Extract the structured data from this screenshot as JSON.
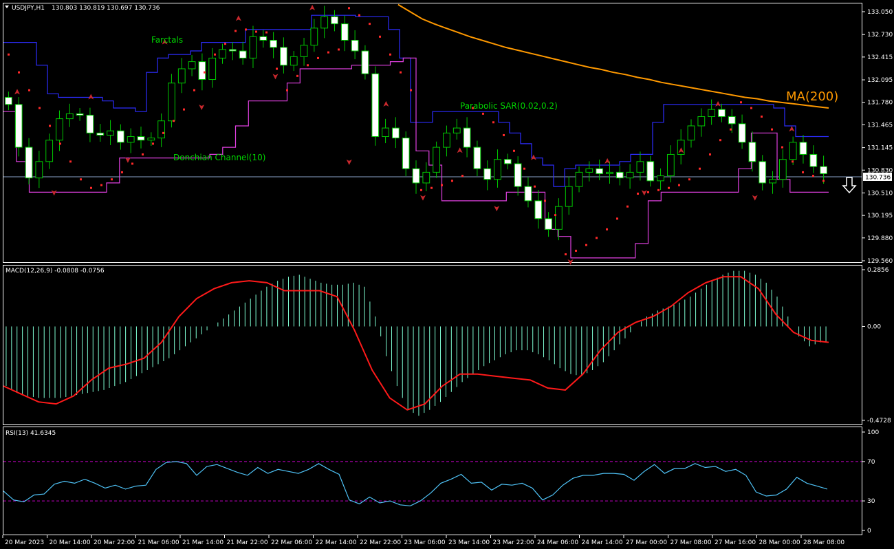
{
  "header": {
    "symbol": "USDJPY,H1",
    "ohlc": "130.803 130.819 130.697 130.736"
  },
  "colors": {
    "background": "#000000",
    "frame": "#ffffff",
    "candle": "#00c800",
    "candle_body": "#ffffff",
    "ma": "#ff9900",
    "donchian_upper": "#2d2dff",
    "donchian_lower": "#e040e0",
    "sar": "#ff2a2a",
    "fractal": "#c8282d",
    "macd_hist": "#7fffd4",
    "macd_signal": "#ff1a1a",
    "rsi": "#4fc3f7",
    "rsi_levels": "#c800c8",
    "label_green": "#00d600",
    "label_orange": "#ff9900"
  },
  "price_panel": {
    "ticks": [
      "133.050",
      "132.730",
      "132.415",
      "132.095",
      "131.780",
      "131.465",
      "131.145",
      "130.830",
      "130.510",
      "130.195",
      "129.880",
      "129.560"
    ],
    "current_price": "130.736",
    "labels": {
      "fractals": "Farctals",
      "sar": "Parabolic SAR(0.02,0.2)",
      "donchian": "Donchian Channel(10)",
      "ma": "MA(200)"
    },
    "icons": [
      "down-arrow-icon",
      "fractal-marker-icon"
    ]
  },
  "macd_panel": {
    "title": "MACD(12,26,9) -0.0808 -0.0756",
    "ticks": [
      "0.2856",
      "0.00",
      "-0.4728"
    ]
  },
  "rsi_panel": {
    "title": "RSI(13) 41.6345",
    "ticks": [
      "100",
      "70",
      "30",
      "0"
    ]
  },
  "x_axis": {
    "labels": [
      "20 Mar 2023",
      "20 Mar 14:00",
      "20 Mar 22:00",
      "21 Mar 06:00",
      "21 Mar 14:00",
      "21 Mar 22:00",
      "22 Mar 06:00",
      "22 Mar 14:00",
      "22 Mar 22:00",
      "23 Mar 06:00",
      "23 Mar 14:00",
      "23 Mar 22:00",
      "24 Mar 06:00",
      "24 Mar 14:00",
      "27 Mar 00:00",
      "27 Mar 08:00",
      "27 Mar 16:00",
      "28 Mar 00:00",
      "28 Mar 08:00"
    ]
  },
  "chart_data": [
    {
      "type": "candlestick",
      "title": "USDJPY,H1",
      "ylim": [
        129.56,
        133.15
      ],
      "current_price": 130.736,
      "series": [
        {
          "name": "Close",
          "values": [
            131.75,
            131.15,
            130.72,
            130.95,
            131.25,
            131.55,
            131.62,
            131.6,
            131.35,
            131.32,
            131.38,
            131.22,
            131.3,
            131.25,
            131.28,
            131.52,
            132.05,
            132.25,
            132.35,
            132.1,
            132.4,
            132.52,
            132.5,
            132.4,
            132.7,
            132.65,
            132.55,
            132.3,
            132.42,
            132.58,
            132.82,
            132.98,
            132.88,
            132.65,
            132.5,
            132.18,
            131.3,
            131.42,
            131.28,
            130.85,
            130.65,
            130.8,
            131.15,
            131.35,
            131.42,
            131.15,
            130.85,
            130.7,
            130.98,
            130.92,
            130.6,
            130.4,
            130.15,
            130.0,
            130.32,
            130.6,
            130.8,
            130.85,
            130.78,
            130.8,
            130.72,
            130.8,
            130.95,
            130.68,
            130.75,
            131.05,
            131.25,
            131.45,
            131.58,
            131.68,
            131.58,
            131.48,
            131.22,
            130.95,
            130.65,
            130.7,
            130.98,
            131.22,
            131.05,
            130.88,
            130.78
          ]
        },
        {
          "name": "MA(200)",
          "values": [
            null,
            null,
            null,
            null,
            null,
            null,
            null,
            null,
            null,
            null,
            null,
            null,
            null,
            null,
            null,
            null,
            null,
            null,
            null,
            null,
            null,
            null,
            null,
            null,
            null,
            null,
            null,
            null,
            null,
            null,
            null,
            null,
            null,
            133.15,
            133.05,
            132.95,
            132.88,
            132.82,
            132.76,
            132.7,
            132.65,
            132.6,
            132.55,
            132.51,
            132.47,
            132.43,
            132.39,
            132.35,
            132.31,
            132.27,
            132.24,
            132.2,
            132.17,
            132.13,
            132.1,
            132.06,
            132.03,
            132.0,
            131.97,
            131.94,
            131.91,
            131.88,
            131.85,
            131.83,
            131.8,
            131.78,
            131.76,
            131.74,
            131.72,
            131.7
          ]
        },
        {
          "name": "Donchian Channel(10) upper",
          "values": [
            132.62,
            132.62,
            132.62,
            132.3,
            131.9,
            131.85,
            131.85,
            131.85,
            131.85,
            131.8,
            131.7,
            131.7,
            131.65,
            132.2,
            132.4,
            132.45,
            132.45,
            132.5,
            132.62,
            132.62,
            132.62,
            132.62,
            132.8,
            132.8,
            132.8,
            132.8,
            132.8,
            132.8,
            133.0,
            133.0,
            133.0,
            133.0,
            132.98,
            132.98,
            132.98,
            132.8,
            132.4,
            131.5,
            131.5,
            131.65,
            131.65,
            131.65,
            131.65,
            131.65,
            131.65,
            131.5,
            131.35,
            131.2,
            131.0,
            130.9,
            130.6,
            130.85,
            130.9,
            130.9,
            130.9,
            130.9,
            130.95,
            131.05,
            131.05,
            131.5,
            131.75,
            131.75,
            131.75,
            131.75,
            131.75,
            131.75,
            131.75,
            131.75,
            131.75,
            131.75,
            131.7,
            131.45,
            131.3,
            131.3,
            131.3
          ]
        },
        {
          "name": "Donchian Channel(10) lower",
          "values": [
            131.65,
            130.95,
            130.52,
            130.52,
            130.52,
            130.52,
            130.52,
            130.52,
            130.65,
            131.0,
            131.0,
            131.0,
            131.0,
            131.0,
            131.0,
            131.0,
            131.05,
            131.15,
            131.45,
            131.8,
            131.8,
            131.8,
            132.05,
            132.25,
            132.25,
            132.25,
            132.25,
            132.3,
            132.3,
            132.3,
            132.35,
            132.4,
            131.1,
            130.9,
            130.4,
            130.4,
            130.4,
            130.4,
            130.4,
            130.52,
            130.52,
            130.52,
            130.0,
            129.9,
            129.6,
            129.6,
            129.6,
            129.6,
            129.6,
            129.8,
            130.4,
            130.52,
            130.52,
            130.52,
            130.52,
            130.52,
            130.52,
            130.85,
            131.35,
            131.35,
            130.7,
            130.52,
            130.52,
            130.52
          ]
        },
        {
          "name": "Parabolic SAR(0.02,0.2)",
          "values": [
            132.45,
            132.2,
            131.95,
            131.7,
            131.45,
            131.2,
            130.95,
            130.7,
            130.58,
            130.62,
            130.7,
            130.8,
            130.92,
            131.05,
            131.2,
            131.35,
            131.52,
            131.68,
            131.95,
            132.2,
            132.45,
            132.6,
            132.78,
            132.8,
            132.77,
            132.76,
            132.25,
            131.95,
            132.15,
            132.3,
            132.4,
            132.48,
            132.52,
            133.1,
            133.0,
            132.88,
            132.7,
            132.45,
            132.2,
            131.95,
            130.55,
            130.58,
            130.62,
            130.68,
            130.75,
            131.7,
            131.62,
            131.5,
            131.32,
            131.1,
            130.85,
            130.6,
            130.4,
            130.2,
            129.65,
            129.7,
            129.78,
            129.88,
            130.0,
            130.15,
            130.32,
            130.5,
            130.52,
            130.55,
            130.58,
            130.62,
            130.7,
            130.85,
            131.05,
            131.25,
            131.4,
            131.78,
            131.7,
            131.58,
            131.4,
            131.15,
            130.95,
            130.8,
            130.75,
            130.68
          ]
        },
        {
          "name": "Farctals",
          "values": [
            "131.92 up",
            "130.52 down",
            "131.85 up",
            "130.98 down",
            "132.62 up",
            "131.72 down",
            "132.95 up",
            "132.15 down",
            "133.10 up",
            "130.95 down",
            "131.75 up",
            "130.45 down",
            "131.10 up",
            "130.30 down",
            "131.00 up",
            "129.55 down",
            "130.95 up",
            "130.52 down",
            "131.10 up",
            "131.75 up",
            "130.45 down",
            "131.40 up"
          ]
        }
      ]
    },
    {
      "type": "bar",
      "title": "MACD(12,26,9) -0.0808 -0.0756",
      "ylim": [
        -0.4728,
        0.2856
      ],
      "series": [
        {
          "name": "MACD",
          "values": [
            -0.3,
            -0.33,
            -0.35,
            -0.36,
            -0.36,
            -0.36,
            -0.35,
            -0.34,
            -0.33,
            -0.32,
            -0.3,
            -0.28,
            -0.25,
            -0.22,
            -0.19,
            -0.16,
            -0.12,
            -0.08,
            -0.04,
            0.0,
            0.04,
            0.08,
            0.12,
            0.16,
            0.2,
            0.23,
            0.25,
            0.26,
            0.24,
            0.22,
            0.21,
            0.21,
            0.22,
            0.2,
            0.05,
            -0.15,
            -0.3,
            -0.42,
            -0.45,
            -0.42,
            -0.38,
            -0.33,
            -0.28,
            -0.24,
            -0.2,
            -0.17,
            -0.14,
            -0.12,
            -0.12,
            -0.14,
            -0.17,
            -0.21,
            -0.24,
            -0.25,
            -0.22,
            -0.18,
            -0.12,
            -0.06,
            0.0,
            0.05,
            0.08,
            0.1,
            0.12,
            0.15,
            0.19,
            0.23,
            0.26,
            0.28,
            0.28,
            0.26,
            0.22,
            0.15,
            0.05,
            -0.05,
            -0.1,
            -0.08
          ]
        },
        {
          "name": "Signal",
          "values": [
            -0.3,
            -0.34,
            -0.38,
            -0.39,
            -0.35,
            -0.27,
            -0.21,
            -0.19,
            -0.16,
            -0.08,
            0.05,
            0.14,
            0.19,
            0.22,
            0.23,
            0.22,
            0.18,
            0.18,
            0.18,
            0.15,
            -0.02,
            -0.22,
            -0.36,
            -0.42,
            -0.39,
            -0.3,
            -0.24,
            -0.24,
            -0.25,
            -0.26,
            -0.27,
            -0.31,
            -0.32,
            -0.24,
            -0.12,
            -0.03,
            0.02,
            0.05,
            0.1,
            0.17,
            0.22,
            0.25,
            0.25,
            0.19,
            0.06,
            -0.03,
            -0.07,
            -0.08
          ]
        }
      ]
    },
    {
      "type": "line",
      "title": "RSI(13) 41.6345",
      "ylim": [
        0,
        100
      ],
      "levels": [
        30,
        70
      ],
      "series": [
        {
          "name": "RSI(13)",
          "values": [
            40,
            31,
            29,
            36,
            37,
            47,
            50,
            48,
            52,
            48,
            43,
            46,
            42,
            45,
            46,
            62,
            69,
            70,
            68,
            56,
            65,
            67,
            63,
            59,
            56,
            64,
            58,
            62,
            60,
            58,
            62,
            68,
            62,
            57,
            31,
            27,
            34,
            28,
            30,
            26,
            25,
            30,
            38,
            48,
            52,
            57,
            48,
            49,
            41,
            47,
            46,
            48,
            43,
            31,
            36,
            46,
            53,
            56,
            56,
            58,
            58,
            57,
            51,
            60,
            67,
            58,
            63,
            63,
            68,
            64,
            65,
            60,
            62,
            56,
            39,
            35,
            36,
            42,
            54,
            48,
            45,
            42
          ]
        }
      ]
    }
  ]
}
